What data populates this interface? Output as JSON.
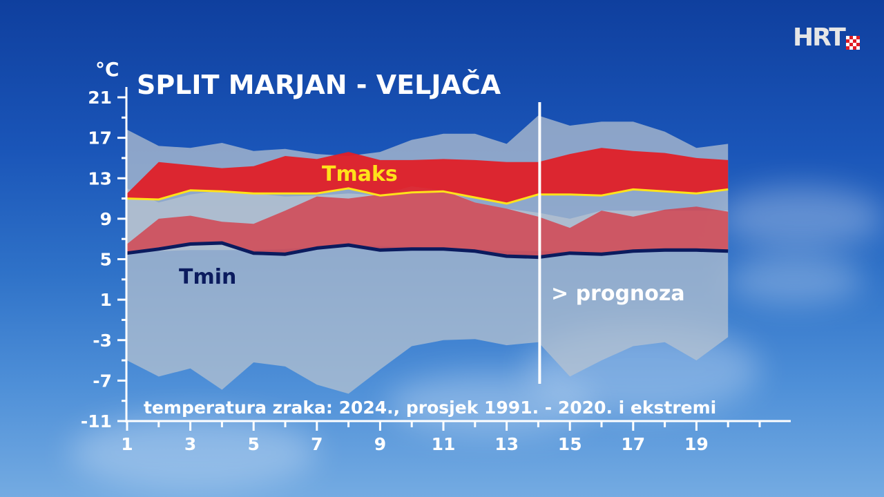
{
  "logo": {
    "text": "HRT"
  },
  "chart_data": {
    "type": "area",
    "title": "SPLIT MARJAN - VELJAČA",
    "unit_label": "°C",
    "subtitle": "temperatura zraka: 2024., prosjek 1991. - 2020. i ekstremi",
    "forecast_label": "> prognoza",
    "forecast_start_day": 14,
    "ylim": [
      -11,
      21
    ],
    "yticks": [
      21,
      17,
      13,
      9,
      5,
      1,
      -3,
      -7,
      -11
    ],
    "xlim": [
      1,
      21
    ],
    "xticks": [
      1,
      3,
      5,
      7,
      9,
      11,
      13,
      15,
      17,
      19
    ],
    "x": [
      1,
      2,
      3,
      4,
      5,
      6,
      7,
      8,
      9,
      10,
      11,
      12,
      13,
      14,
      15,
      16,
      17,
      18,
      19,
      20
    ],
    "series": [
      {
        "name": "Tmaks apsolutni maksimum",
        "values": [
          17.8,
          16.2,
          16.0,
          16.5,
          15.7,
          15.9,
          15.4,
          15.2,
          15.6,
          16.8,
          17.4,
          17.4,
          16.4,
          19.2,
          18.2,
          18.6,
          18.6,
          17.6,
          16.0,
          16.4
        ],
        "color": "#a9b8cc"
      },
      {
        "name": "Tmaks apsolutni minimum",
        "values": [
          5.8,
          5.8,
          5.9,
          5.9,
          5.9,
          6.0,
          6.2,
          6.3,
          6.3,
          6.2,
          6.1,
          6.0,
          5.8,
          5.8,
          5.7,
          5.7,
          5.8,
          5.8,
          5.8,
          5.8
        ],
        "color": "#a9b8cc"
      },
      {
        "name": "Tmaks 2024.",
        "values": [
          11.5,
          14.6,
          14.3,
          14.0,
          14.2,
          15.2,
          14.9,
          15.6,
          14.8,
          14.8,
          14.9,
          14.8,
          14.6,
          14.6,
          15.4,
          16.0,
          15.7,
          15.5,
          15.0,
          14.8
        ],
        "color": "#e01f27"
      },
      {
        "name": "Tmaks prosjek",
        "values": [
          11.0,
          10.9,
          11.8,
          11.7,
          11.5,
          11.5,
          11.5,
          12.0,
          11.3,
          11.6,
          11.7,
          11.1,
          10.5,
          11.4,
          11.4,
          11.3,
          11.9,
          11.7,
          11.5,
          11.9
        ],
        "color": "#ffe21a"
      },
      {
        "name": "Tmin apsolutni maksimum",
        "values": [
          12.0,
          10.6,
          11.4,
          11.8,
          11.5,
          11.2,
          11.3,
          11.5,
          11.3,
          12.0,
          11.9,
          10.6,
          10.0,
          9.6,
          9.0,
          9.8,
          9.8,
          9.8,
          9.8,
          9.8
        ],
        "color": "#a9b8cc"
      },
      {
        "name": "Tmin apsolutni minimum",
        "values": [
          -5.0,
          -6.6,
          -5.8,
          -7.9,
          -5.2,
          -5.6,
          -7.4,
          -8.3,
          -5.9,
          -3.6,
          -3.0,
          -2.9,
          -3.5,
          -3.2,
          -6.6,
          -5.0,
          -3.6,
          -3.2,
          -5.0,
          -2.7
        ],
        "color": "#a9b8cc"
      },
      {
        "name": "Tmin 2024.",
        "values": [
          6.5,
          9.0,
          9.3,
          8.7,
          8.5,
          9.8,
          11.2,
          11.0,
          11.4,
          12.2,
          11.8,
          10.6,
          10.0,
          9.2,
          8.1,
          9.8,
          9.2,
          9.9,
          10.2,
          9.7
        ],
        "color": "#d9303a"
      },
      {
        "name": "Tmin prosjek",
        "values": [
          5.6,
          6.0,
          6.5,
          6.6,
          5.6,
          5.5,
          6.1,
          6.4,
          5.9,
          6.0,
          6.0,
          5.8,
          5.3,
          5.2,
          5.6,
          5.5,
          5.8,
          5.9,
          5.9,
          5.8
        ],
        "color": "#0b1b5e"
      }
    ],
    "labels": {
      "tmax": "Tmaks",
      "tmin": "Tmin"
    }
  }
}
